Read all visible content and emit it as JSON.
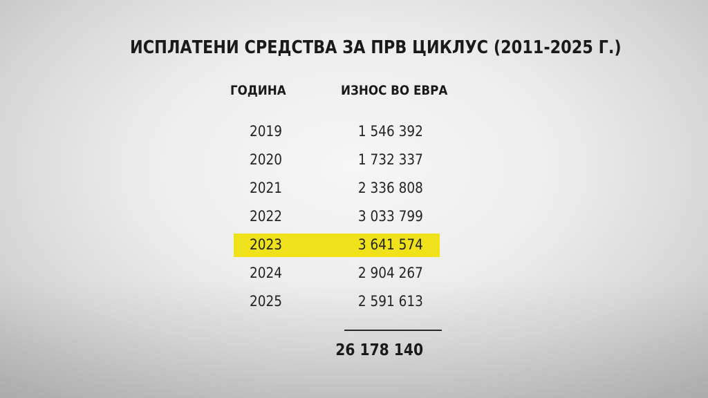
{
  "title": "ИСПЛАТЕНИ СРЕДСТВА ЗА ПРВ ЦИКЛУС (2011-2025 Г.)",
  "table": {
    "headers": {
      "year": "ГОДИНА",
      "amount": "ИЗНОС ВО ЕВРА"
    },
    "rows": [
      {
        "year": "2019",
        "amount": "1 546 392",
        "highlighted": false
      },
      {
        "year": "2020",
        "amount": "1 732 337",
        "highlighted": false
      },
      {
        "year": "2021",
        "amount": "2 336 808",
        "highlighted": false
      },
      {
        "year": "2022",
        "amount": "3 033 799",
        "highlighted": false
      },
      {
        "year": "2023",
        "amount": "3 641 574",
        "highlighted": true
      },
      {
        "year": "2024",
        "amount": "2 904 267",
        "highlighted": false
      },
      {
        "year": "2025",
        "amount": "2 591 613",
        "highlighted": false
      }
    ],
    "total": "26 178 140"
  },
  "colors": {
    "highlight": "#efe21a",
    "text": "#1c1c1c",
    "background": "#e6e6e6"
  }
}
